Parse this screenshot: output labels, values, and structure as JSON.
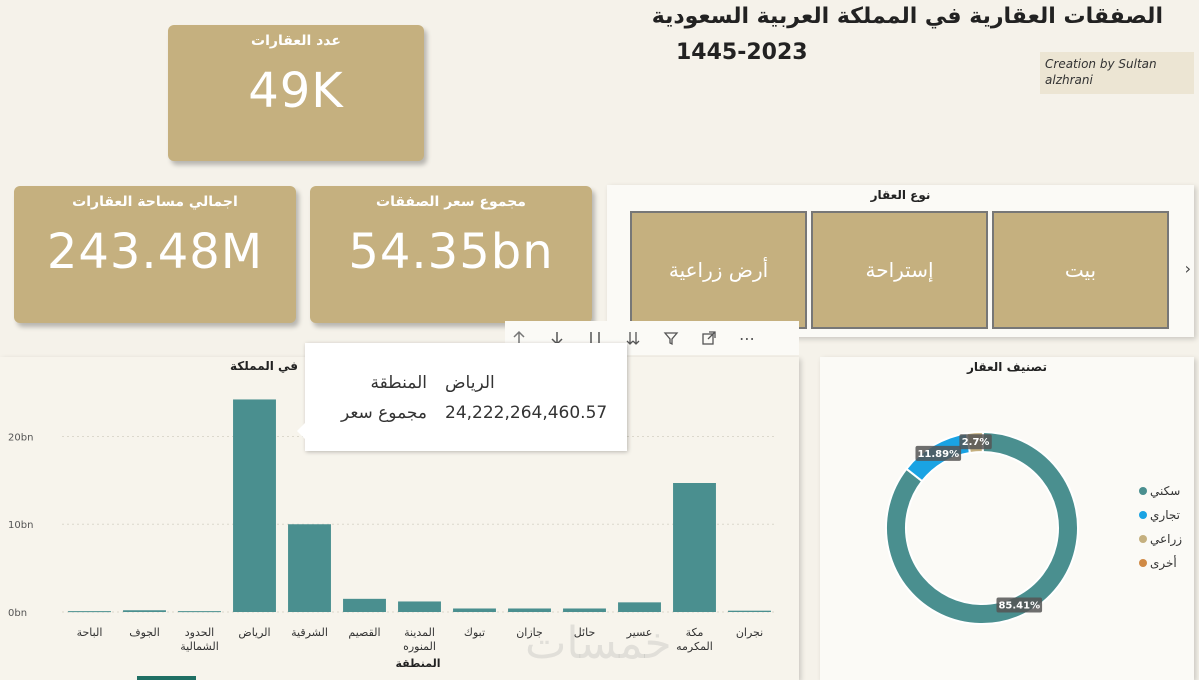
{
  "header": {
    "title_line1": "الصفقات العقارية في المملكة العربية السعودية",
    "title_line2": "1445-2023",
    "creator": "Creation by Sultan alzhrani"
  },
  "kpis": {
    "count": {
      "label": "عدد العقارات",
      "value": "49K"
    },
    "area": {
      "label": "اجمالي مساحة العقارات",
      "value": "243.48M"
    },
    "price": {
      "label": "مجموع سعر الصفقات",
      "value": "54.35bn"
    }
  },
  "slicer": {
    "title": "نوع العقار",
    "items": [
      "بيت",
      "إستراحة",
      "أرض زراعية"
    ]
  },
  "toolbar": {
    "icons": [
      "drill-up-icon",
      "drill-down-icon",
      "next-level-icon",
      "expand-all-icon",
      "filter-icon",
      "focus-mode-icon",
      "more-options-icon"
    ]
  },
  "tooltip": {
    "region_label": "المنطقة",
    "region_value": "الرياض",
    "sum_label": "مجموع سعر",
    "sum_value": "24,222,264,460.57"
  },
  "bar_panel_title": "في المملكة",
  "donut_panel_title": "تصنيف العقار",
  "watermark": "خمسات",
  "chart_data": [
    {
      "type": "bar",
      "title": "",
      "xlabel": "المنطقة",
      "ylabel": "",
      "ylim": [
        0,
        24.5
      ],
      "yticks": [
        "0bn",
        "10bn",
        "20bn"
      ],
      "grid": true,
      "categories": [
        "نجران",
        "مكة المكرمه",
        "عسير",
        "حائل",
        "جازان",
        "تبوك",
        "المدينة المنوره",
        "القصيم",
        "الشرقية",
        "الرياض",
        "الحدود الشمالية",
        "الجوف",
        "الباحة"
      ],
      "values": [
        0.15,
        14.7,
        1.1,
        0.4,
        0.4,
        0.4,
        1.2,
        1.5,
        10.0,
        24.22,
        0.1,
        0.2,
        0.1
      ],
      "color": "#4a8f8f"
    },
    {
      "type": "pie",
      "donut": true,
      "title": "",
      "legend_position": "right",
      "slices": [
        {
          "label": "سكني",
          "value": 85.41,
          "display": "85.41%",
          "color": "#4a8f8f"
        },
        {
          "label": "تجاري",
          "value": 11.89,
          "display": "11.89%",
          "color": "#1aa3e3"
        },
        {
          "label": "زراعي",
          "value": 2.7,
          "display": "2.7%",
          "color": "#c5b07f"
        },
        {
          "label": "أخرى",
          "value": 0.0,
          "display": "",
          "color": "#d08a45"
        }
      ]
    }
  ]
}
